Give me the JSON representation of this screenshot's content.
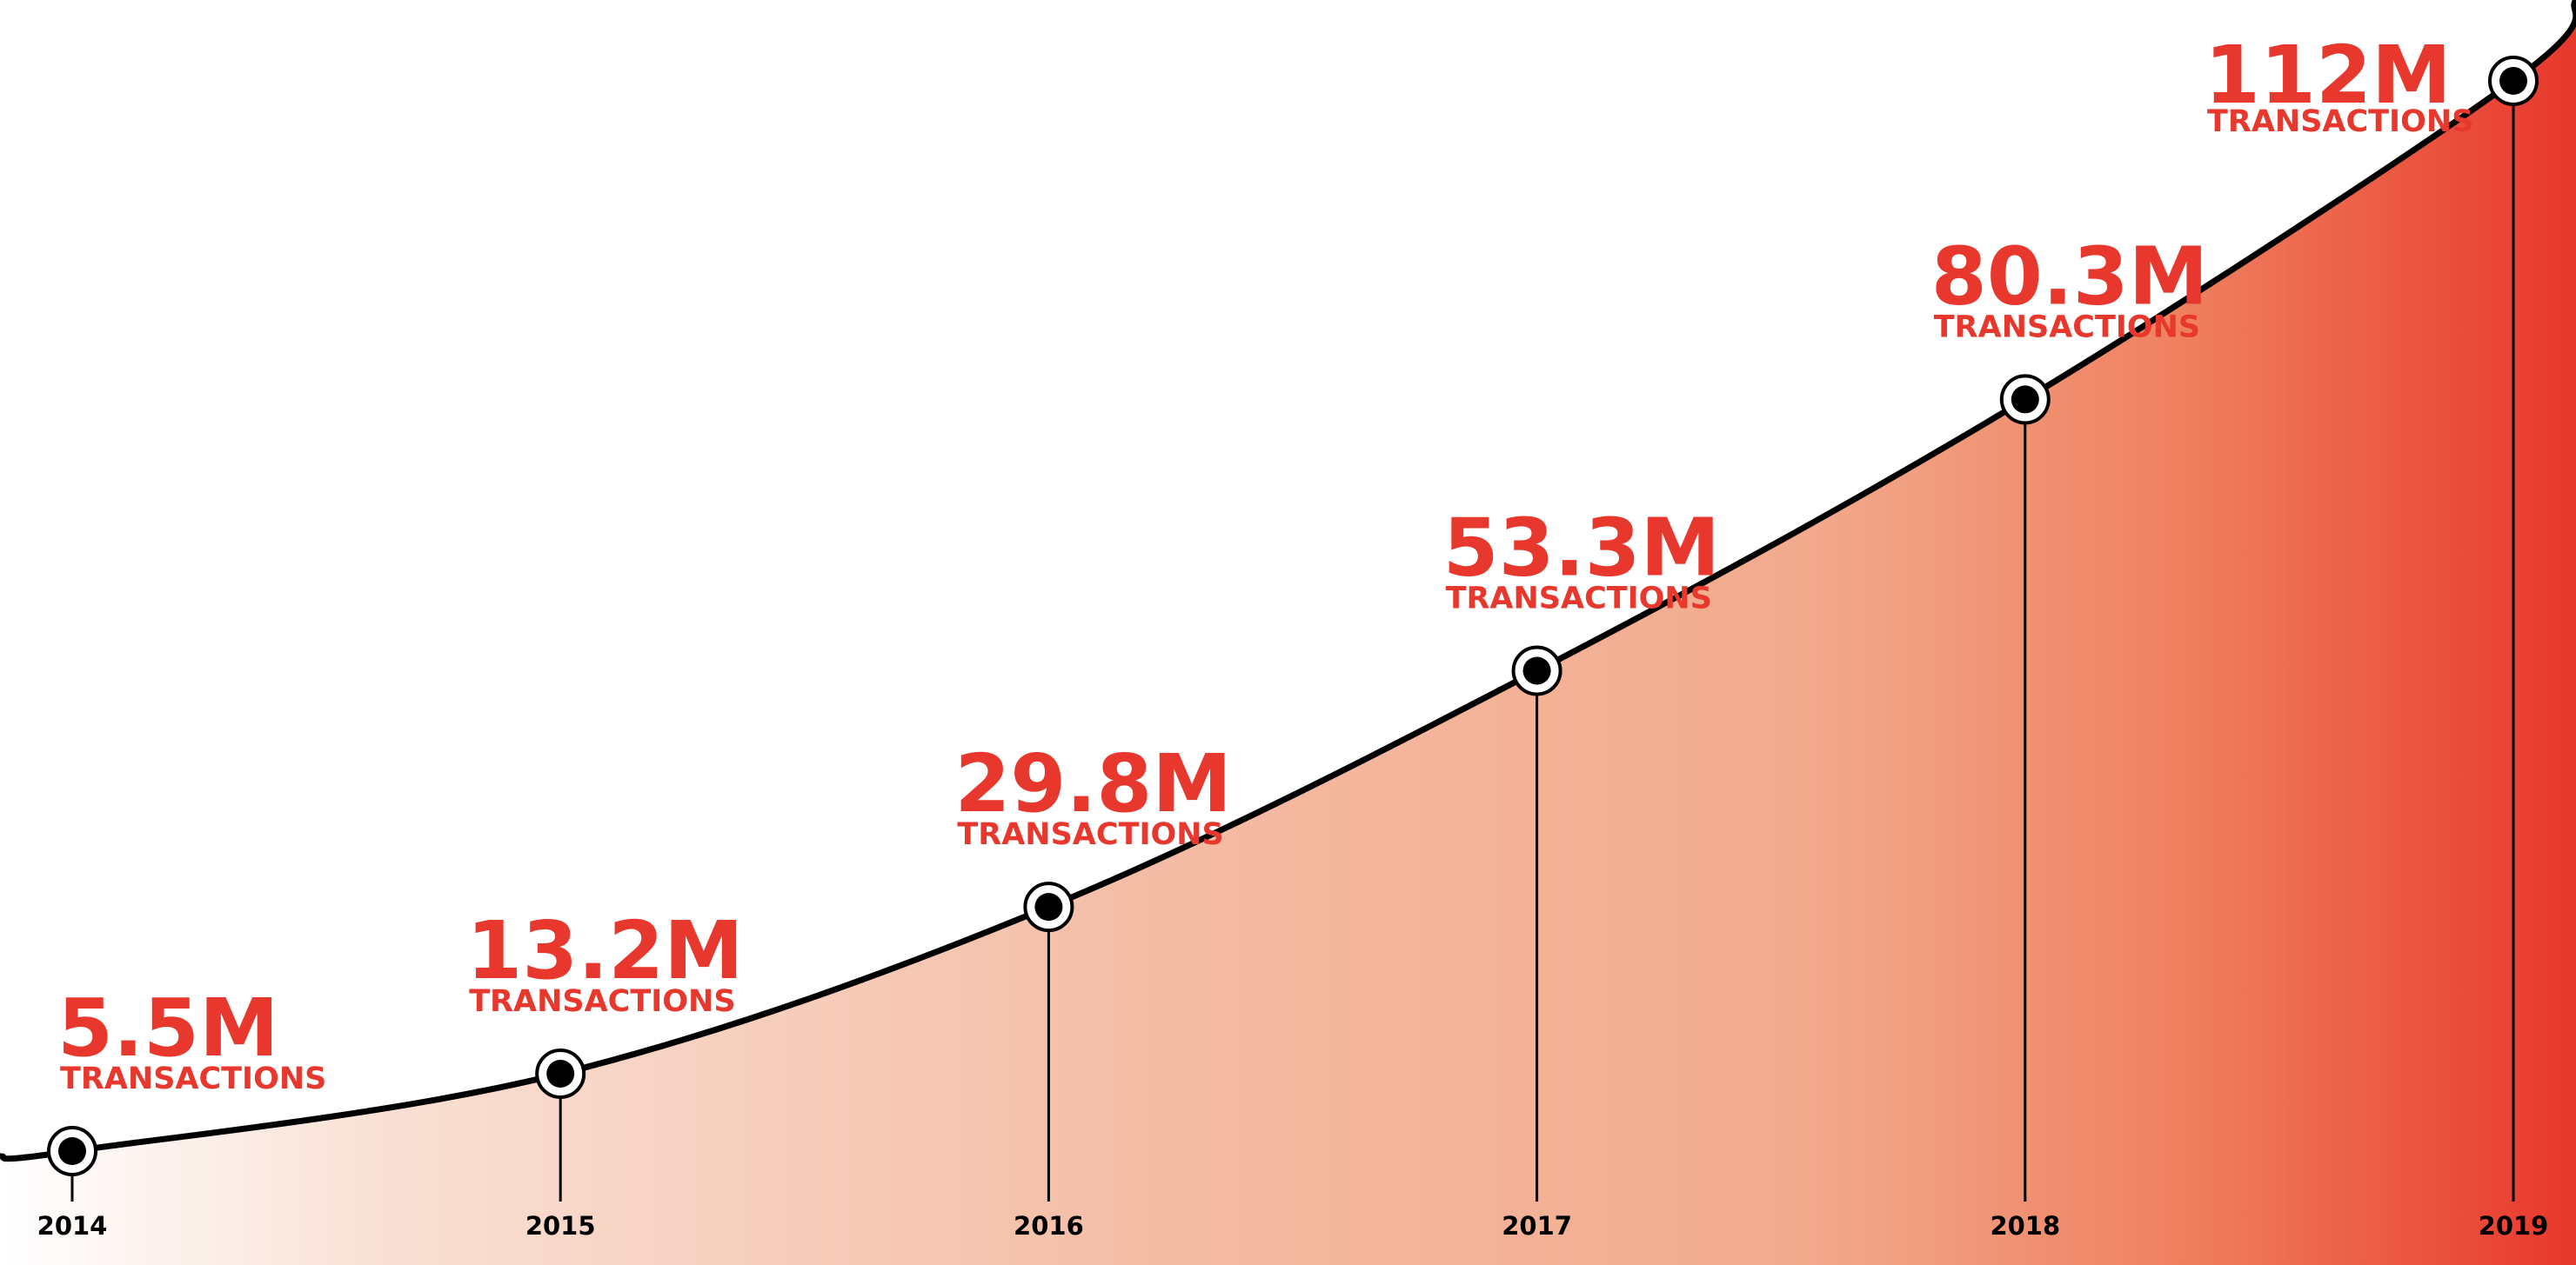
{
  "chart_data": {
    "type": "line",
    "categories": [
      "2014",
      "2015",
      "2016",
      "2017",
      "2018",
      "2019"
    ],
    "series": [
      {
        "name": "TRANSACTIONS",
        "color": "#e8372c",
        "values": [
          5.5,
          13.2,
          29.8,
          53.3,
          80.3,
          112
        ],
        "value_labels": [
          "5.5M",
          "13.2M",
          "29.8M",
          "53.3M",
          "80.3M",
          "112M"
        ]
      }
    ]
  }
}
